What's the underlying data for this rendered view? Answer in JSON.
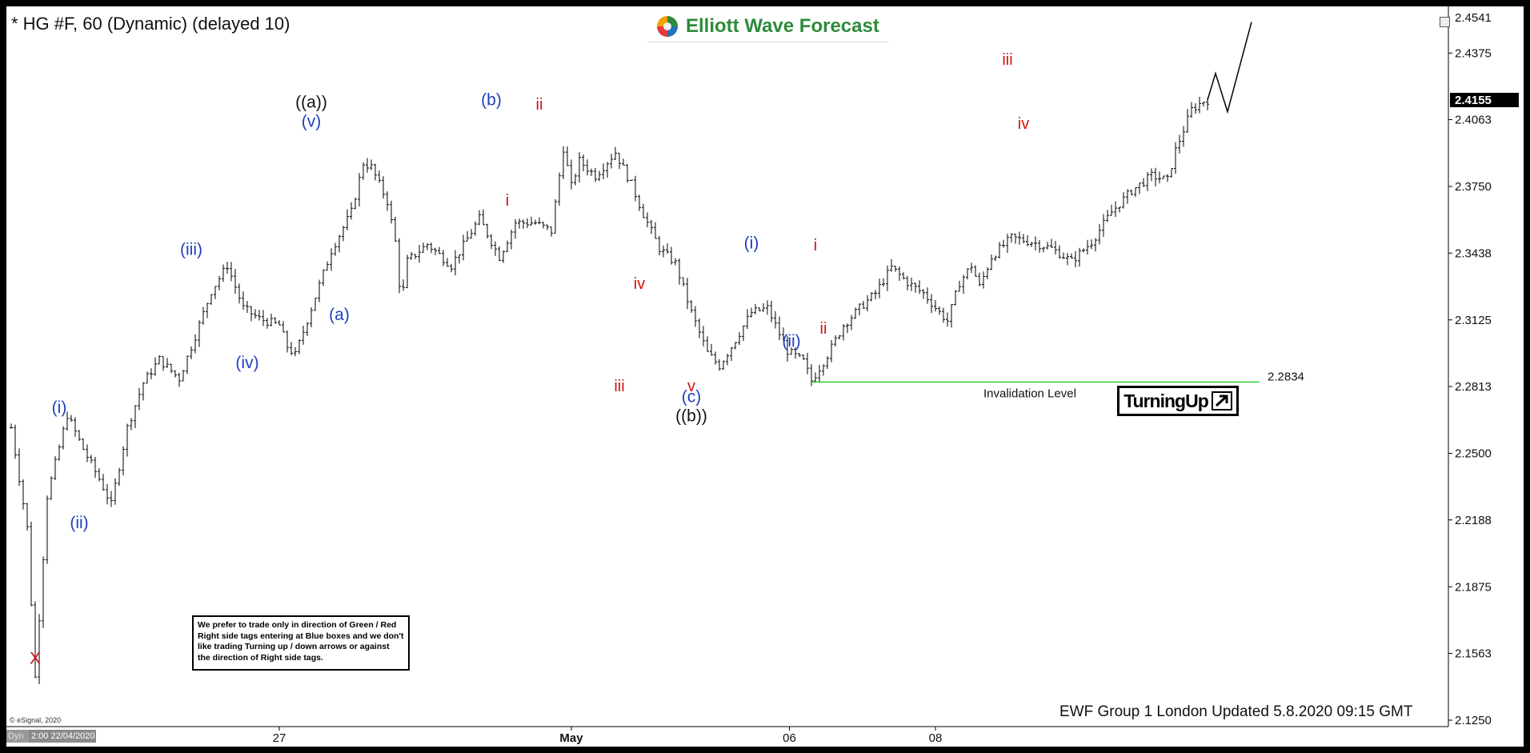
{
  "window": {
    "title": "* HG #F, 60 (Dynamic) (delayed 10)",
    "logo_text": "Elliott Wave Forecast",
    "updated": "EWF Group 1 London Updated 5.8.2020 09:15 GMT",
    "copyright": "© eSignal, 2020",
    "dyn_label": "Dyn",
    "time_label": "2:00 22/04/2020",
    "note": "We prefer to trade only in direction of Green / Red Right side tags entering at Blue boxes and we don't like trading Turning up / down arrows or against the direction of Right side tags.",
    "turning_label": "TurningUp",
    "window_button_icon": "restore-window-icon"
  },
  "colors": {
    "blue_label": "#1f3fbf",
    "red_label": "#d11414",
    "invalidation_line": "#33cc33",
    "candles": "#000000",
    "logo_green": "#2e8b3a"
  },
  "chart_data": {
    "type": "ohlc",
    "symbol": "HG #F",
    "timeframe": "60",
    "x_ticks": [
      "27",
      "May",
      "06",
      "08"
    ],
    "y_ticks": [
      2.4375,
      2.4063,
      2.375,
      2.3438,
      2.3125,
      2.2813,
      2.25,
      2.2188,
      2.1875,
      2.1563,
      2.125
    ],
    "y_tick_labels": [
      "2.4375",
      "2.4063",
      "2.3750",
      "2.3438",
      "2.3125",
      "2.2813",
      "2.2500",
      "2.2188",
      "2.1875",
      "2.1563",
      "2.1250"
    ],
    "ylim": [
      2.125,
      2.4541
    ],
    "top_price_label": "2.4541",
    "last_price_label": "2.4155",
    "last_price": 2.4155,
    "invalidation": {
      "value": 2.2834,
      "label": "2.2834",
      "text": "Invalidation Level"
    },
    "price_path": [
      [
        0,
        2.262
      ],
      [
        4,
        2.215
      ],
      [
        5,
        2.18
      ],
      [
        6,
        2.145
      ],
      [
        9,
        2.23
      ],
      [
        14,
        2.268
      ],
      [
        18,
        2.252
      ],
      [
        22,
        2.238
      ],
      [
        25,
        2.226
      ],
      [
        29,
        2.262
      ],
      [
        33,
        2.283
      ],
      [
        37,
        2.294
      ],
      [
        42,
        2.285
      ],
      [
        46,
        2.305
      ],
      [
        50,
        2.326
      ],
      [
        54,
        2.338
      ],
      [
        58,
        2.318
      ],
      [
        62,
        2.313
      ],
      [
        67,
        2.31
      ],
      [
        69,
        2.3
      ],
      [
        71,
        2.296
      ],
      [
        75,
        2.318
      ],
      [
        80,
        2.345
      ],
      [
        85,
        2.363
      ],
      [
        88,
        2.386
      ],
      [
        90,
        2.384
      ],
      [
        94,
        2.368
      ],
      [
        96,
        2.349
      ],
      [
        97.5,
        2.32
      ],
      [
        99,
        2.34
      ],
      [
        104,
        2.348
      ],
      [
        110,
        2.338
      ],
      [
        117,
        2.36
      ],
      [
        122,
        2.342
      ],
      [
        126,
        2.358
      ],
      [
        131,
        2.358
      ],
      [
        135,
        2.354
      ],
      [
        138,
        2.393
      ],
      [
        140,
        2.375
      ],
      [
        142,
        2.387
      ],
      [
        146,
        2.38
      ],
      [
        151,
        2.391
      ],
      [
        155,
        2.376
      ],
      [
        158,
        2.362
      ],
      [
        162,
        2.346
      ],
      [
        166,
        2.339
      ],
      [
        170,
        2.316
      ],
      [
        174,
        2.297
      ],
      [
        177,
        2.291
      ],
      [
        180,
        2.3
      ],
      [
        185,
        2.316
      ],
      [
        189,
        2.318
      ],
      [
        194,
        2.298
      ],
      [
        198,
        2.293
      ],
      [
        200,
        2.284
      ],
      [
        204,
        2.296
      ],
      [
        208,
        2.31
      ],
      [
        212,
        2.318
      ],
      [
        216,
        2.325
      ],
      [
        220,
        2.337
      ],
      [
        224,
        2.33
      ],
      [
        228,
        2.325
      ],
      [
        232,
        2.316
      ],
      [
        234,
        2.312
      ],
      [
        237,
        2.33
      ],
      [
        240,
        2.338
      ],
      [
        242,
        2.328
      ],
      [
        245,
        2.342
      ],
      [
        250,
        2.351
      ],
      [
        255,
        2.349
      ],
      [
        260,
        2.346
      ],
      [
        265,
        2.34
      ],
      [
        270,
        2.349
      ],
      [
        275,
        2.363
      ],
      [
        280,
        2.373
      ],
      [
        285,
        2.38
      ],
      [
        289,
        2.378
      ],
      [
        291,
        2.392
      ],
      [
        295,
        2.411
      ],
      [
        298,
        2.415
      ],
      [
        299,
        2.4155
      ]
    ],
    "price_path_note": "x is bar index (hourly bars from 2:00 22/04/2020); y is price",
    "projection": [
      [
        299,
        2.4155
      ],
      [
        301,
        2.428
      ],
      [
        304,
        2.41
      ],
      [
        310,
        2.452
      ]
    ],
    "wave_labels": [
      {
        "text": "X",
        "color": "red",
        "x": 6,
        "y": 2.1515
      },
      {
        "text": "(i)",
        "color": "blue",
        "x": 12,
        "y": 2.269
      },
      {
        "text": "(ii)",
        "color": "blue",
        "x": 17,
        "y": 2.215
      },
      {
        "text": "(iii)",
        "color": "blue",
        "x": 45,
        "y": 2.343
      },
      {
        "text": "(iv)",
        "color": "blue",
        "x": 59,
        "y": 2.29
      },
      {
        "text": "(v)",
        "color": "blue",
        "x": 75,
        "y": 2.403
      },
      {
        "text": "((a))",
        "color": "black",
        "x": 75,
        "y": 2.412
      },
      {
        "text": "(a)",
        "color": "blue",
        "x": 82,
        "y": 2.3125
      },
      {
        "text": "(b)",
        "color": "blue",
        "x": 120,
        "y": 2.413
      },
      {
        "text": "i",
        "color": "red",
        "x": 124,
        "y": 2.366
      },
      {
        "text": "ii",
        "color": "red",
        "x": 132,
        "y": 2.411
      },
      {
        "text": "iii",
        "color": "red",
        "x": 152,
        "y": 2.279
      },
      {
        "text": "iv",
        "color": "red",
        "x": 157,
        "y": 2.327
      },
      {
        "text": "v",
        "color": "red",
        "x": 170,
        "y": 2.279
      },
      {
        "text": "(c)",
        "color": "blue",
        "x": 170,
        "y": 2.274
      },
      {
        "text": "((b))",
        "color": "black",
        "x": 170,
        "y": 2.265
      },
      {
        "text": "(i)",
        "color": "blue",
        "x": 185,
        "y": 2.346
      },
      {
        "text": "(ii)",
        "color": "blue",
        "x": 195,
        "y": 2.3
      },
      {
        "text": "i",
        "color": "red",
        "x": 201,
        "y": 2.345
      },
      {
        "text": "ii",
        "color": "red",
        "x": 203,
        "y": 2.306
      },
      {
        "text": "iii",
        "color": "red",
        "x": 249,
        "y": 2.432
      },
      {
        "text": "iv",
        "color": "red",
        "x": 253,
        "y": 2.402
      }
    ]
  }
}
